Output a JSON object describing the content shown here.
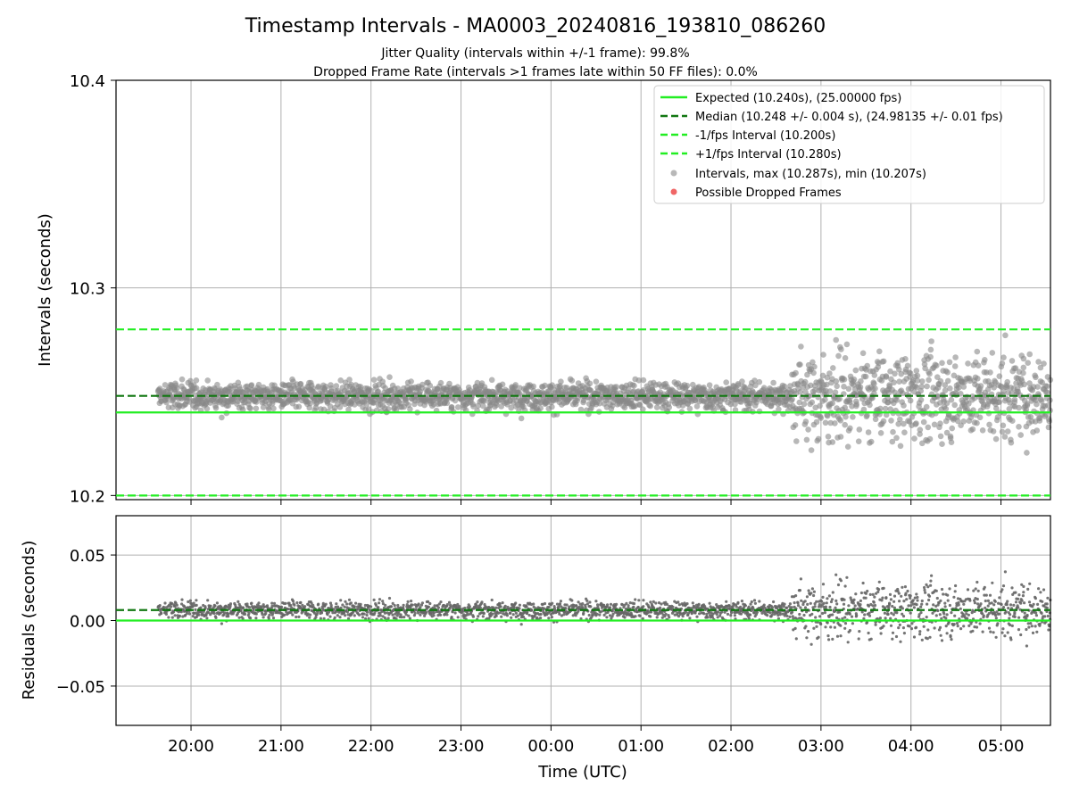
{
  "chart_data": [
    {
      "type": "scatter",
      "title": "Timestamp Intervals - MA0003_20240816_193810_086260",
      "subtitle_lines": [
        "Jitter Quality (intervals within +/-1 frame): 99.8%",
        "Dropped Frame Rate (intervals >1 frames late within 50 FF files): 0.0%"
      ],
      "ylabel": "Intervals (seconds)",
      "ylim": [
        10.198,
        10.4
      ],
      "yticks": [
        "10.2",
        "10.3",
        "10.4"
      ],
      "grid": true,
      "legend_position": "top-right",
      "reference_lines": [
        {
          "name": "Expected (10.240s), (25.00000 fps)",
          "y": 10.24,
          "style": "solid",
          "color": "#22ee22"
        },
        {
          "name": "Median (10.248 +/- 0.004 s), (24.98135 +/- 0.01 fps)",
          "y": 10.248,
          "style": "dashed",
          "color": "#117711"
        },
        {
          "name": "-1/fps Interval (10.200s)",
          "y": 10.2,
          "style": "dashed",
          "color": "#22ee22"
        },
        {
          "name": "+1/fps Interval (10.280s)",
          "y": 10.28,
          "style": "dashed",
          "color": "#22ee22"
        }
      ],
      "series": [
        {
          "name": "Intervals, max (10.287s), min (10.207s)",
          "color": "#888888",
          "max": 10.287,
          "min": 10.207
        },
        {
          "name": "Possible Dropped Frames",
          "color": "#ee5555",
          "count": 0
        }
      ]
    },
    {
      "type": "scatter",
      "ylabel": "Residuals (seconds)",
      "xlabel": "Time (UTC)",
      "ylim": [
        -0.08,
        0.08
      ],
      "yticks": [
        "0.05",
        "0.00",
        "−0.05"
      ],
      "xticks": [
        "20:00",
        "21:00",
        "22:00",
        "23:00",
        "00:00",
        "01:00",
        "02:00",
        "03:00",
        "04:00",
        "05:00"
      ],
      "xrange_utc": [
        "2024-08-16 19:10",
        "2024-08-17 05:33"
      ],
      "data_span_utc": [
        "2024-08-16 19:38",
        "2024-08-17 05:33"
      ],
      "reference_lines": [
        {
          "y": 0.0,
          "style": "solid",
          "color": "#22ee22"
        },
        {
          "y": 0.008,
          "style": "dashed",
          "color": "#117711"
        }
      ],
      "grid": true
    }
  ]
}
